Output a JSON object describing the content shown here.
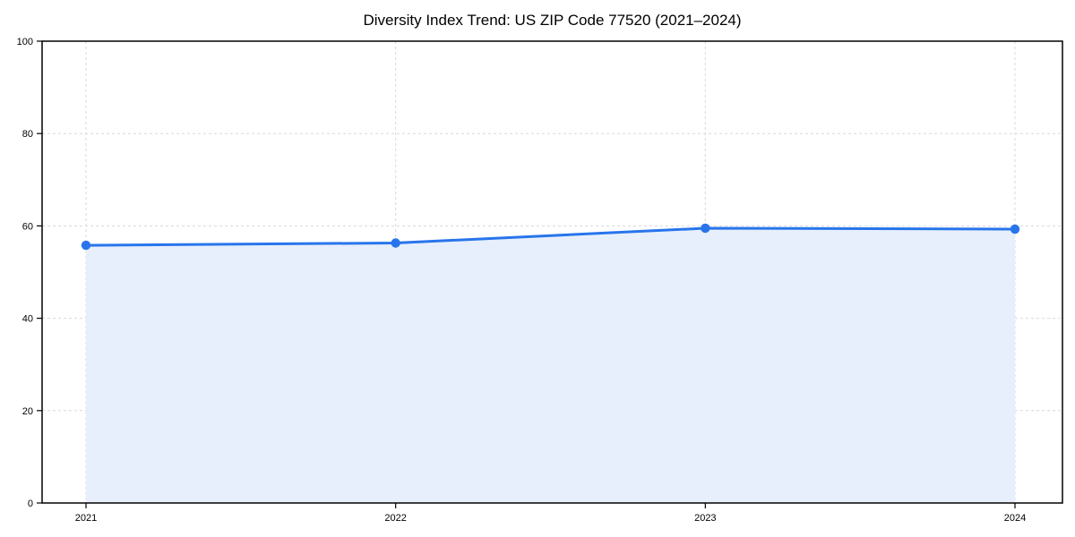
{
  "chart_data": {
    "type": "area",
    "title": "Diversity Index Trend: US ZIP Code 77520 (2021–2024)",
    "categories": [
      "2021",
      "2022",
      "2023",
      "2024"
    ],
    "values": [
      55.8,
      56.3,
      59.5,
      59.3
    ],
    "xlabel": "",
    "ylabel": "",
    "ylim": [
      0,
      100
    ],
    "yticks": [
      0,
      20,
      40,
      60,
      80,
      100
    ],
    "grid": true,
    "grid_style": "dashed",
    "legend_position": "none",
    "colors": {
      "line": "#2875eb",
      "marker": "#2875eb",
      "fill": "#e7effc",
      "grid": "#d9d9d9",
      "axis": "#000000",
      "text": "#000000",
      "background": "#ffffff"
    }
  }
}
